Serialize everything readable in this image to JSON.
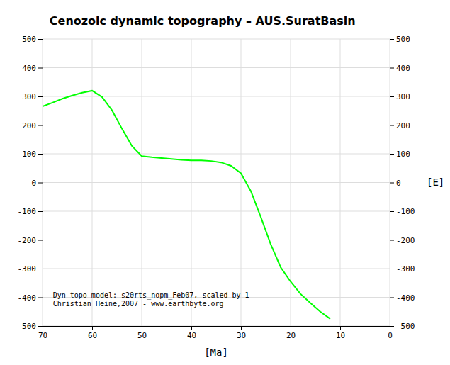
{
  "chart_data": {
    "type": "line",
    "title": "Cenozoic dynamic topography – AUS.SuratBasin",
    "xlabel": "[Ma]",
    "ylabel": "[E]",
    "annotation": "Dyn topo model: s20rts_nopm_Feb07, scaled by 1\nChristian Heine,2007 - www.earthbyte.org",
    "xlim": [
      70,
      0
    ],
    "ylim": [
      -500,
      500
    ],
    "xticks": [
      70,
      60,
      50,
      40,
      30,
      20,
      10,
      0
    ],
    "yticks": [
      -500,
      -400,
      -300,
      -200,
      -100,
      0,
      100,
      200,
      300,
      400,
      500
    ],
    "grid": true,
    "color": "#00ff00",
    "x": [
      70,
      68,
      66,
      64,
      62,
      60,
      58,
      56,
      54,
      52,
      50,
      48,
      46,
      44,
      42,
      40,
      38,
      36,
      34,
      32,
      30,
      28,
      26,
      24,
      22,
      20,
      18,
      16,
      14,
      12
    ],
    "values": [
      265,
      278,
      292,
      303,
      313,
      320,
      298,
      252,
      188,
      128,
      92,
      88,
      85,
      82,
      79,
      77,
      77,
      75,
      70,
      58,
      32,
      -30,
      -120,
      -215,
      -295,
      -345,
      -388,
      -420,
      -450,
      -475
    ]
  }
}
